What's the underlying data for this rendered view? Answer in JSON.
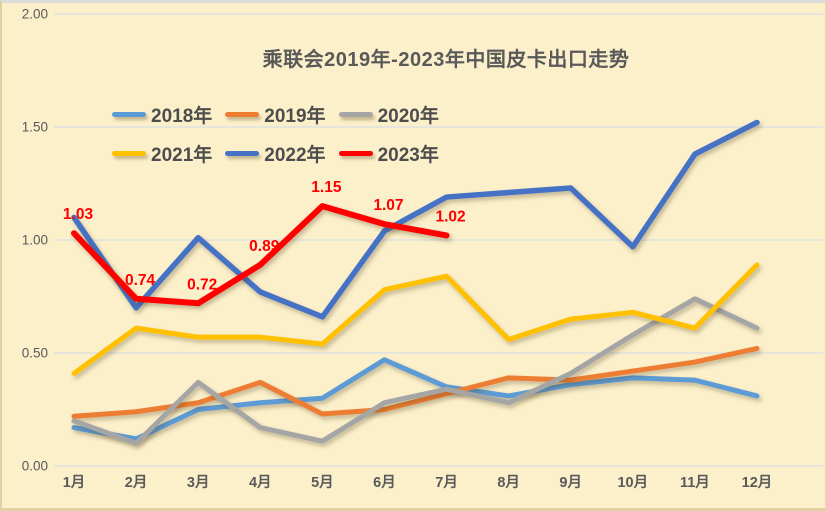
{
  "colors": {
    "background": "#FCF0CB",
    "grid": "#D9DEE6",
    "axis_text": "#595959",
    "title_text": "#595959",
    "data_label": "#FF0000"
  },
  "chart_data": {
    "type": "line",
    "title": "乘联会2019年-2023年中国皮卡出口走势",
    "categories": [
      "1月",
      "2月",
      "3月",
      "4月",
      "5月",
      "6月",
      "7月",
      "8月",
      "9月",
      "10月",
      "11月",
      "12月"
    ],
    "y_ticks": [
      "0.00",
      "0.50",
      "1.00",
      "1.50",
      "2.00"
    ],
    "ylim": [
      0,
      2.0
    ],
    "grid": true,
    "legend_position": "top-left",
    "series": [
      {
        "name": "2018年",
        "color": "#5B9BD5",
        "values": [
          0.17,
          0.12,
          0.25,
          0.28,
          0.3,
          0.47,
          0.35,
          0.31,
          0.36,
          0.39,
          0.38,
          0.31
        ]
      },
      {
        "name": "2019年",
        "color": "#ED7D31",
        "values": [
          0.22,
          0.24,
          0.28,
          0.37,
          0.23,
          0.25,
          0.32,
          0.39,
          0.38,
          0.42,
          0.46,
          0.52
        ]
      },
      {
        "name": "2020年",
        "color": "#A5A5A5",
        "values": [
          0.2,
          0.1,
          0.37,
          0.17,
          0.11,
          0.28,
          0.34,
          0.28,
          0.41,
          0.58,
          0.74,
          0.61
        ]
      },
      {
        "name": "2021年",
        "color": "#FFC000",
        "values": [
          0.41,
          0.61,
          0.57,
          0.57,
          0.54,
          0.78,
          0.84,
          0.56,
          0.65,
          0.68,
          0.61,
          0.89
        ]
      },
      {
        "name": "2022年",
        "color": "#4472C4",
        "values": [
          1.1,
          0.7,
          1.01,
          0.77,
          0.66,
          1.04,
          1.19,
          1.21,
          1.23,
          0.97,
          1.38,
          1.52
        ]
      },
      {
        "name": "2023年",
        "color": "#FF0000",
        "show_labels": true,
        "values": [
          1.03,
          0.74,
          0.72,
          0.89,
          1.15,
          1.07,
          1.02
        ],
        "labels": [
          "1.03",
          "0.74",
          "0.72",
          "0.89",
          "1.15",
          "1.07",
          "1.02"
        ]
      }
    ]
  }
}
